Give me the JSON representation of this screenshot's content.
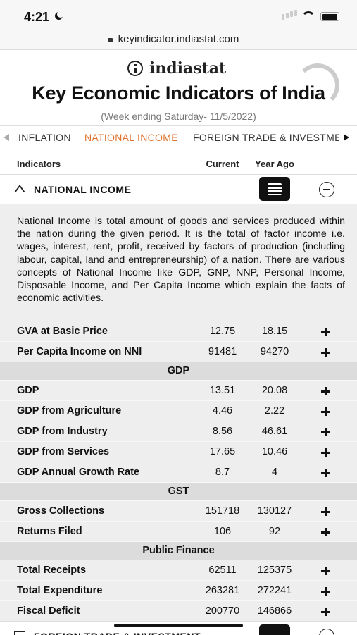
{
  "status_bar": {
    "time": "4:21"
  },
  "url": "keyindicator.indiastat.com",
  "header": {
    "logo": "indiastat",
    "title": "Key Economic Indicators of India",
    "subtitle": "(Week ending Saturday- 11/5/2022)"
  },
  "tabs": [
    "INFLATION",
    "NATIONAL INCOME",
    "FOREIGN TRADE & INVESTME"
  ],
  "table_header": [
    "Indicators",
    "Current",
    "Year Ago"
  ],
  "section": {
    "title": "NATIONAL INCOME",
    "description": "National Income is total amount of goods and services produced within the nation during the given period. It is the total of factor income i.e. wages, interest, rent, profit, received by factors of production (including labour, capital, land and entrepreneurship) of a nation. There are various concepts of National Income like GDP, GNP, NNP, Personal Income, Disposable Income, and Per Capita Income which explain the facts of economic activities."
  },
  "rows": [
    {
      "label": "GVA at Basic Price",
      "current": 12.75,
      "year_ago": 18.15
    },
    {
      "label": "Per Capita Income on NNI",
      "current": 91481,
      "year_ago": 94270
    },
    {
      "group": "GDP"
    },
    {
      "label": "GDP",
      "current": 13.51,
      "year_ago": 20.08
    },
    {
      "label": "GDP from Agriculture",
      "current": 4.46,
      "year_ago": 2.22
    },
    {
      "label": "GDP from Industry",
      "current": 8.56,
      "year_ago": 46.61
    },
    {
      "label": "GDP from Services",
      "current": 17.65,
      "year_ago": 10.46
    },
    {
      "label": "GDP Annual Growth Rate",
      "current": 8.7,
      "year_ago": 4
    },
    {
      "group": "GST"
    },
    {
      "label": "Gross Collections",
      "current": 151718,
      "year_ago": 130127
    },
    {
      "label": "Returns Filed",
      "current": 106,
      "year_ago": 92
    },
    {
      "group": "Public Finance"
    },
    {
      "label": "Total Receipts",
      "current": 62511,
      "year_ago": 125375
    },
    {
      "label": "Total Expenditure",
      "current": 263281,
      "year_ago": 272241
    },
    {
      "label": "Fiscal Deficit",
      "current": 200770,
      "year_ago": 146866
    }
  ],
  "next_section": "FOREIGN TRADE & INVESTMENT"
}
